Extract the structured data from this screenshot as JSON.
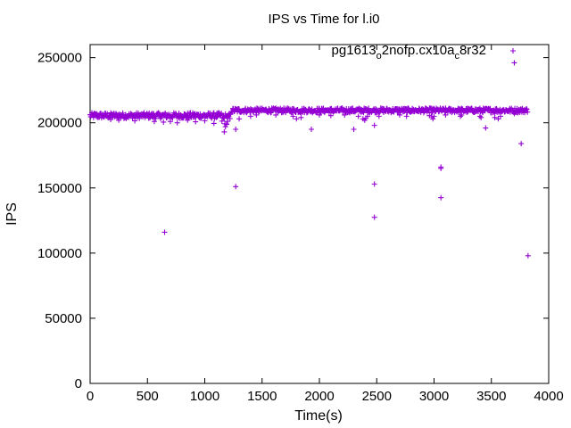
{
  "chart_data": {
    "type": "scatter",
    "title": "IPS vs Time for l.i0",
    "xlabel": "Time(s)",
    "ylabel": "IPS",
    "xlim": [
      0,
      4000
    ],
    "ylim": [
      0,
      260000
    ],
    "xticks": [
      0,
      500,
      1000,
      1500,
      2000,
      2500,
      3000,
      3500,
      4000
    ],
    "xtick_labels": [
      "0",
      "500",
      "1000",
      "1500",
      "2000",
      "2500",
      "3000",
      "3500",
      "4000"
    ],
    "yticks": [
      0,
      50000,
      100000,
      150000,
      200000,
      250000
    ],
    "ytick_labels": [
      "0",
      "50000",
      "100000",
      "150000",
      "200000",
      "250000"
    ],
    "grid": false,
    "legend_position": "top-right",
    "marker": "plus",
    "series": [
      {
        "name_parts": [
          {
            "text": "pg1613",
            "sub": false
          },
          {
            "text": "o",
            "sub": true
          },
          {
            "text": "2nofp.cx10a",
            "sub": false
          },
          {
            "text": "c",
            "sub": true
          },
          {
            "text": "8r32",
            "sub": false
          }
        ],
        "color": "#9400d3",
        "bands": [
          {
            "x_start": 0,
            "x_end": 1150,
            "y_center": 205500,
            "y_spread": 2200
          },
          {
            "x_start": 1150,
            "x_end": 1230,
            "y_center": 203000,
            "y_spread": 4500
          },
          {
            "x_start": 1230,
            "x_end": 3820,
            "y_center": 209500,
            "y_spread": 1800
          }
        ],
        "points": [
          [
            640,
            200500
          ],
          [
            700,
            201000
          ],
          [
            760,
            200000
          ],
          [
            850,
            202000
          ],
          [
            920,
            200800
          ],
          [
            1000,
            201500
          ],
          [
            1080,
            199500
          ],
          [
            390,
            201500
          ],
          [
            250,
            202000
          ],
          [
            180,
            202500
          ],
          [
            560,
            201000
          ],
          [
            1170,
            193000
          ],
          [
            1180,
            197000
          ],
          [
            1190,
            199000
          ],
          [
            1270,
            195000
          ],
          [
            1300,
            203000
          ],
          [
            1400,
            205000
          ],
          [
            1450,
            206000
          ],
          [
            1620,
            206000
          ],
          [
            1770,
            205000
          ],
          [
            1800,
            203000
          ],
          [
            1840,
            204000
          ],
          [
            1930,
            195000
          ],
          [
            2000,
            206000
          ],
          [
            2100,
            205500
          ],
          [
            2220,
            206000
          ],
          [
            2300,
            195000
          ],
          [
            2340,
            205000
          ],
          [
            2380,
            203000
          ],
          [
            2395,
            202000
          ],
          [
            2405,
            203500
          ],
          [
            2420,
            205000
          ],
          [
            2480,
            198000
          ],
          [
            2520,
            205000
          ],
          [
            2700,
            206000
          ],
          [
            2760,
            205000
          ],
          [
            2960,
            205500
          ],
          [
            2980,
            204500
          ],
          [
            2990,
            203000
          ],
          [
            3000,
            205000
          ],
          [
            3100,
            206000
          ],
          [
            3230,
            205000
          ],
          [
            3240,
            206000
          ],
          [
            3400,
            205000
          ],
          [
            3410,
            204000
          ],
          [
            3450,
            196000
          ],
          [
            3530,
            204000
          ],
          [
            3560,
            203000
          ],
          [
            3580,
            205000
          ],
          [
            3700,
            207000
          ],
          [
            650,
            116000
          ],
          [
            1270,
            151000
          ],
          [
            2480,
            153000
          ],
          [
            2480,
            127500
          ],
          [
            3060,
            166000
          ],
          [
            3060,
            165000
          ],
          [
            3060,
            142500
          ],
          [
            3700,
            246000
          ],
          [
            3760,
            184000
          ],
          [
            3820,
            98000
          ]
        ]
      }
    ]
  }
}
